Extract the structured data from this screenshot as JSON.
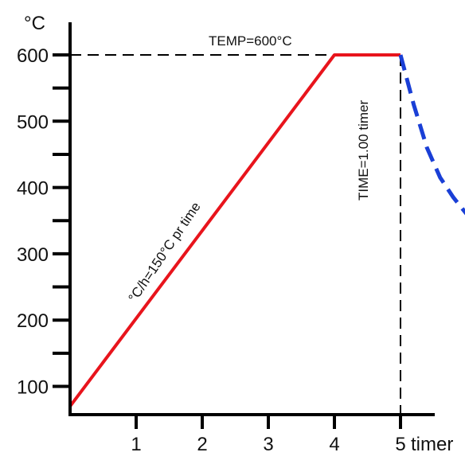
{
  "chart_data": {
    "type": "line",
    "title": "",
    "xlabel": "timer",
    "ylabel": "°C",
    "xlim": [
      0,
      5.5
    ],
    "ylim": [
      50,
      650
    ],
    "x_ticks": [
      1,
      2,
      3,
      4,
      5
    ],
    "x_tick_labels": [
      "1",
      "2",
      "3",
      "4",
      "5"
    ],
    "y_ticks": [
      100,
      200,
      300,
      400,
      500,
      600
    ],
    "y_tick_labels": [
      "100",
      "200",
      "300",
      "400",
      "500",
      "600"
    ],
    "y_minor_step": 50,
    "grid": false,
    "legend": "none",
    "series": [
      {
        "color": "#e8141c",
        "style": "solid",
        "x": [
          0,
          4,
          5
        ],
        "y": [
          70,
          600,
          600
        ]
      },
      {
        "color": "#1a3fd6",
        "style": "dashed",
        "x": [
          5,
          5.2,
          5.4,
          5.6,
          5.8,
          6.0
        ],
        "y": [
          600,
          525,
          460,
          415,
          385,
          360
        ]
      }
    ],
    "reference_lines": [
      {
        "orientation": "horizontal",
        "value": 600,
        "from": 0,
        "to": 4
      },
      {
        "orientation": "vertical",
        "value": 5,
        "from": 50,
        "to": 600
      }
    ],
    "annotations": {
      "temp": "TEMP=600°C",
      "time": "TIME=1.00 timer",
      "rate": "°C/h=150°C pr time"
    }
  }
}
